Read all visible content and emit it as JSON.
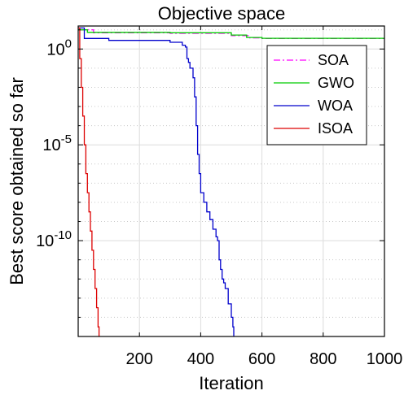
{
  "chart_data": {
    "type": "line",
    "title": "Objective space",
    "xlabel": "Iteration",
    "ylabel": "Best score obtained so far",
    "xlim": [
      0,
      1000
    ],
    "ylim_log10": [
      -15,
      1.2
    ],
    "yscale": "log",
    "grid": true,
    "legend_position": "top-right",
    "x_ticks": [
      200,
      400,
      600,
      800,
      1000
    ],
    "y_ticks": [
      {
        "value_log10": 0,
        "label_base": "10",
        "label_exp": "0"
      },
      {
        "value_log10": -5,
        "label_base": "10",
        "label_exp": "-5"
      },
      {
        "value_log10": -10,
        "label_base": "10",
        "label_exp": "-10"
      }
    ],
    "series": [
      {
        "name": "SOA",
        "color": "#ff00ff",
        "style": "dashdot",
        "points_log10": [
          [
            1,
            1.0
          ],
          [
            50,
            0.85
          ],
          [
            300,
            0.82
          ],
          [
            500,
            0.7
          ],
          [
            560,
            0.58
          ],
          [
            600,
            0.55
          ],
          [
            1000,
            0.55
          ]
        ]
      },
      {
        "name": "GWO",
        "color": "#00cc00",
        "style": "solid",
        "points_log10": [
          [
            1,
            1.0
          ],
          [
            30,
            0.87
          ],
          [
            300,
            0.85
          ],
          [
            500,
            0.73
          ],
          [
            550,
            0.6
          ],
          [
            600,
            0.56
          ],
          [
            1000,
            0.56
          ]
        ]
      },
      {
        "name": "WOA",
        "color": "#0000cc",
        "style": "solid",
        "points_log10": [
          [
            1,
            1.1
          ],
          [
            20,
            0.55
          ],
          [
            100,
            0.45
          ],
          [
            300,
            0.35
          ],
          [
            340,
            0.2
          ],
          [
            350,
            0.1
          ],
          [
            355,
            -0.5
          ],
          [
            360,
            -0.7
          ],
          [
            365,
            -1.0
          ],
          [
            375,
            -1.5
          ],
          [
            380,
            -2.5
          ],
          [
            385,
            -4.0
          ],
          [
            390,
            -5.5
          ],
          [
            395,
            -6.5
          ],
          [
            400,
            -7.5
          ],
          [
            410,
            -8.0
          ],
          [
            420,
            -8.5
          ],
          [
            430,
            -8.9
          ],
          [
            440,
            -9.4
          ],
          [
            450,
            -9.8
          ],
          [
            455,
            -10.0
          ],
          [
            460,
            -11.0
          ],
          [
            465,
            -11.5
          ],
          [
            470,
            -12.0
          ],
          [
            475,
            -12.2
          ],
          [
            480,
            -12.5
          ],
          [
            490,
            -13.3
          ],
          [
            500,
            -14.0
          ],
          [
            505,
            -14.5
          ],
          [
            508,
            -15.0
          ]
        ]
      },
      {
        "name": "ISOA",
        "color": "#dd0000",
        "style": "solid",
        "points_log10": [
          [
            1,
            1.1
          ],
          [
            5,
            -0.5
          ],
          [
            10,
            -2.0
          ],
          [
            15,
            -3.5
          ],
          [
            20,
            -5.0
          ],
          [
            25,
            -6.5
          ],
          [
            30,
            -7.5
          ],
          [
            35,
            -8.5
          ],
          [
            40,
            -9.5
          ],
          [
            45,
            -10.5
          ],
          [
            50,
            -11.5
          ],
          [
            55,
            -12.5
          ],
          [
            60,
            -13.5
          ],
          [
            65,
            -14.5
          ],
          [
            68,
            -15.0
          ]
        ]
      }
    ]
  }
}
